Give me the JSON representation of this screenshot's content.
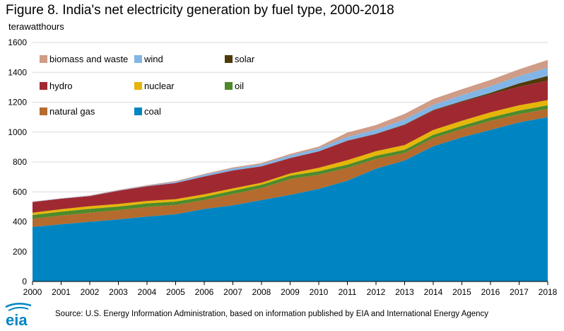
{
  "header": {
    "title": "Figure 8. India's net electricity generation by fuel type, 2000-2018",
    "unit": "terawatthours"
  },
  "footer": {
    "logo_text": "eia",
    "source": "Source: U.S. Energy Information Administration, based on information published by EIA and International Energy Agency"
  },
  "chart_data": {
    "type": "area",
    "stacked": true,
    "title": "Figure 8. India's net electricity generation by fuel type, 2000-2018",
    "ylabel": "terawatthours",
    "xlabel": "",
    "x": [
      2000,
      2001,
      2002,
      2003,
      2004,
      2005,
      2006,
      2007,
      2008,
      2009,
      2010,
      2011,
      2012,
      2013,
      2014,
      2015,
      2016,
      2017,
      2018
    ],
    "ylim": [
      0,
      1600
    ],
    "yticks": [
      0,
      200,
      400,
      600,
      800,
      1000,
      1200,
      1400,
      1600
    ],
    "grid": "horizontal",
    "legend_position": "top-left",
    "series": [
      {
        "name": "coal",
        "color": "#0085c2",
        "values": [
          365,
          383,
          400,
          415,
          435,
          450,
          485,
          510,
          545,
          580,
          620,
          675,
          755,
          810,
          905,
          965,
          1015,
          1065,
          1100
        ]
      },
      {
        "name": "natural gas",
        "color": "#b56b2d",
        "values": [
          55,
          58,
          60,
          62,
          64,
          62,
          60,
          75,
          80,
          105,
          95,
          85,
          65,
          50,
          55,
          55,
          60,
          55,
          55
        ]
      },
      {
        "name": "oil",
        "color": "#4e8a2c",
        "values": [
          25,
          26,
          26,
          25,
          24,
          23,
          22,
          23,
          23,
          23,
          23,
          22,
          22,
          22,
          22,
          22,
          23,
          24,
          24
        ]
      },
      {
        "name": "nuclear",
        "color": "#e6b509",
        "values": [
          15,
          17,
          18,
          17,
          16,
          16,
          16,
          15,
          13,
          15,
          23,
          30,
          30,
          31,
          32,
          34,
          35,
          35,
          35
        ]
      },
      {
        "name": "hydro",
        "color": "#a02931",
        "values": [
          72,
          70,
          68,
          88,
          98,
          108,
          120,
          120,
          110,
          103,
          110,
          130,
          115,
          135,
          130,
          125,
          120,
          125,
          130
        ]
      },
      {
        "name": "solar",
        "color": "#4f3a09",
        "values": [
          0,
          0,
          0,
          0,
          0,
          0,
          0,
          0,
          0,
          0,
          0,
          1,
          2,
          3,
          4,
          6,
          10,
          22,
          32
        ]
      },
      {
        "name": "wind",
        "color": "#82b5e5",
        "values": [
          2,
          2,
          2,
          3,
          4,
          8,
          12,
          14,
          14,
          18,
          20,
          24,
          28,
          33,
          34,
          40,
          44,
          48,
          55
        ]
      },
      {
        "name": "biomass and waste",
        "color": "#cf9c87",
        "values": [
          1,
          1,
          2,
          3,
          4,
          5,
          5,
          6,
          8,
          10,
          12,
          30,
          30,
          38,
          40,
          40,
          42,
          46,
          52
        ]
      }
    ],
    "legend_order": [
      "biomass and waste",
      "wind",
      "solar",
      "hydro",
      "nuclear",
      "oil",
      "natural gas",
      "coal"
    ]
  }
}
